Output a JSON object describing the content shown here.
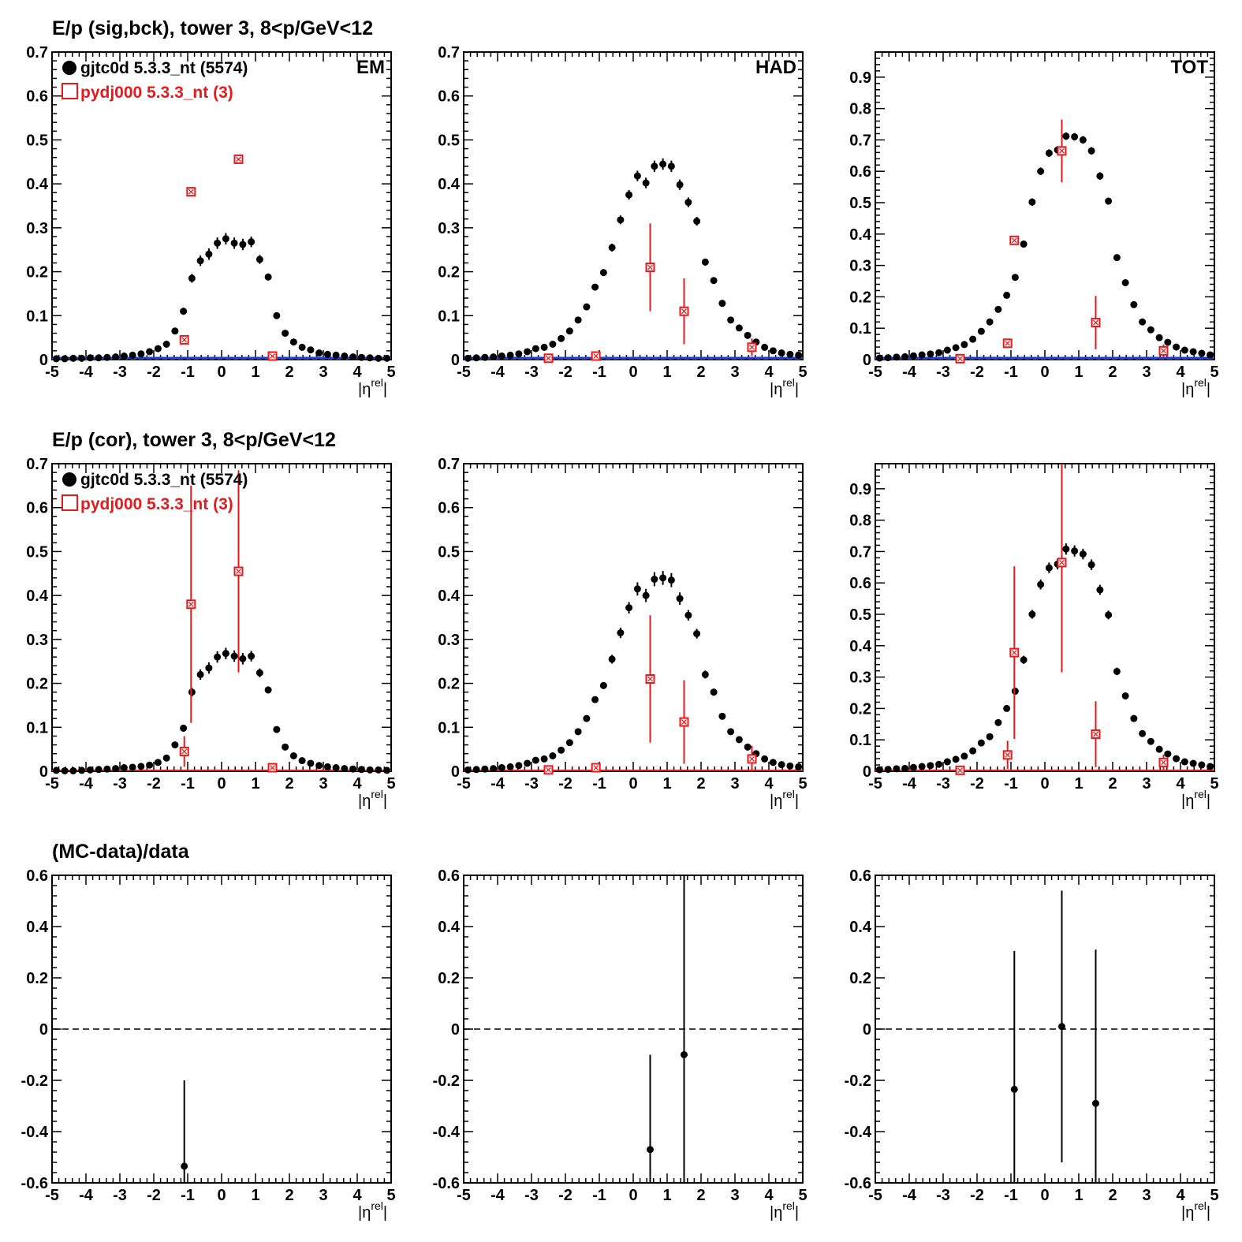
{
  "rows": [
    {
      "title": "E/p (sig,bck), tower 3,  8<p/GeV<12"
    },
    {
      "title": "E/p (cor), tower 3,  8<p/GeV<12"
    },
    {
      "title": "(MC-data)/data"
    }
  ],
  "legend": {
    "data_label": "gjtc0d 5.3.3_nt (5574)",
    "mc_label": "pydj000 5.3.3_nt (3)"
  },
  "colors": {
    "data": "#000000",
    "mc": "#e41a1c",
    "bck": "#1f3fd0",
    "zero_line": "#2a8f2a"
  },
  "chart_data": [
    {
      "id": "em-sigbck",
      "type": "scatter",
      "corner_label": "EM",
      "xlabel": "|η^rel|",
      "xlim": [
        -5,
        5
      ],
      "ylim": [
        0,
        0.7
      ],
      "yticks": [
        0,
        0.1,
        0.2,
        0.3,
        0.4,
        0.5,
        0.6,
        0.7
      ],
      "show_legend": true,
      "show_bck": true,
      "data": {
        "x": [
          -4.875,
          -4.625,
          -4.375,
          -4.125,
          -3.875,
          -3.625,
          -3.375,
          -3.125,
          -2.875,
          -2.625,
          -2.375,
          -2.125,
          -1.875,
          -1.625,
          -1.375,
          -1.125,
          -0.875,
          -0.625,
          -0.375,
          -0.125,
          0.125,
          0.375,
          0.625,
          0.875,
          1.125,
          1.375,
          1.625,
          1.875,
          2.125,
          2.375,
          2.625,
          2.875,
          3.125,
          3.375,
          3.625,
          3.875,
          4.125,
          4.375,
          4.625,
          4.875
        ],
        "y": [
          0.002,
          0.002,
          0.003,
          0.003,
          0.004,
          0.004,
          0.005,
          0.006,
          0.008,
          0.01,
          0.013,
          0.018,
          0.025,
          0.035,
          0.065,
          0.11,
          0.185,
          0.225,
          0.24,
          0.265,
          0.275,
          0.265,
          0.262,
          0.268,
          0.228,
          0.188,
          0.1,
          0.06,
          0.04,
          0.028,
          0.022,
          0.015,
          0.012,
          0.01,
          0.008,
          0.006,
          0.005,
          0.004,
          0.003,
          0.003
        ],
        "err": [
          0.001,
          0.001,
          0.001,
          0.001,
          0.001,
          0.001,
          0.001,
          0.001,
          0.002,
          0.002,
          0.002,
          0.003,
          0.003,
          0.004,
          0.006,
          0.008,
          0.01,
          0.012,
          0.013,
          0.013,
          0.013,
          0.013,
          0.013,
          0.012,
          0.01,
          0.008,
          0.005,
          0.004,
          0.003,
          0.003,
          0.002,
          0.002,
          0.002,
          0.002,
          0.001,
          0.001,
          0.001,
          0.001,
          0.001,
          0.001
        ]
      },
      "mc": {
        "x": [
          -1.1,
          -0.9,
          0.5,
          1.5
        ],
        "y": [
          0.045,
          0.382,
          0.456,
          0.008
        ],
        "err": [
          0.0,
          0.0,
          0.0,
          0.0
        ]
      }
    },
    {
      "id": "had-sigbck",
      "type": "scatter",
      "corner_label": "HAD",
      "xlabel": "|η^rel|",
      "xlim": [
        -5,
        5
      ],
      "ylim": [
        0,
        0.7
      ],
      "yticks": [
        0,
        0.1,
        0.2,
        0.3,
        0.4,
        0.5,
        0.6,
        0.7
      ],
      "show_legend": false,
      "show_bck": true,
      "data": {
        "x": [
          -4.875,
          -4.625,
          -4.375,
          -4.125,
          -3.875,
          -3.625,
          -3.375,
          -3.125,
          -2.875,
          -2.625,
          -2.375,
          -2.125,
          -1.875,
          -1.625,
          -1.375,
          -1.125,
          -0.875,
          -0.625,
          -0.375,
          -0.125,
          0.125,
          0.375,
          0.625,
          0.875,
          1.125,
          1.375,
          1.625,
          1.875,
          2.125,
          2.375,
          2.625,
          2.875,
          3.125,
          3.375,
          3.625,
          3.875,
          4.125,
          4.375,
          4.625,
          4.875
        ],
        "y": [
          0.003,
          0.004,
          0.005,
          0.006,
          0.008,
          0.01,
          0.013,
          0.018,
          0.025,
          0.028,
          0.035,
          0.048,
          0.065,
          0.09,
          0.12,
          0.165,
          0.198,
          0.255,
          0.318,
          0.375,
          0.418,
          0.402,
          0.44,
          0.445,
          0.44,
          0.398,
          0.358,
          0.315,
          0.222,
          0.18,
          0.128,
          0.09,
          0.072,
          0.055,
          0.04,
          0.028,
          0.02,
          0.015,
          0.012,
          0.01
        ],
        "err": [
          0.001,
          0.001,
          0.001,
          0.001,
          0.001,
          0.002,
          0.002,
          0.002,
          0.003,
          0.003,
          0.003,
          0.004,
          0.004,
          0.005,
          0.006,
          0.007,
          0.008,
          0.009,
          0.01,
          0.011,
          0.012,
          0.012,
          0.013,
          0.013,
          0.013,
          0.012,
          0.011,
          0.01,
          0.008,
          0.007,
          0.006,
          0.005,
          0.004,
          0.004,
          0.003,
          0.003,
          0.002,
          0.002,
          0.002,
          0.002
        ]
      },
      "mc": {
        "x": [
          -2.5,
          -1.1,
          0.5,
          1.5,
          3.5
        ],
        "y": [
          0.003,
          0.008,
          0.21,
          0.11,
          0.028
        ],
        "err": [
          0.0,
          0.0,
          0.1,
          0.075,
          0.02
        ]
      }
    },
    {
      "id": "tot-sigbck",
      "type": "scatter",
      "corner_label": "TOT",
      "xlabel": "|η^rel|",
      "xlim": [
        -5,
        5
      ],
      "ylim": [
        0,
        0.98
      ],
      "yticks": [
        0,
        0.1,
        0.2,
        0.3,
        0.4,
        0.5,
        0.6,
        0.7,
        0.8,
        0.9
      ],
      "show_legend": false,
      "show_bck": true,
      "data": {
        "x": [
          -4.875,
          -4.625,
          -4.375,
          -4.125,
          -3.875,
          -3.625,
          -3.375,
          -3.125,
          -2.875,
          -2.625,
          -2.375,
          -2.125,
          -1.875,
          -1.625,
          -1.375,
          -1.125,
          -0.875,
          -0.625,
          -0.375,
          -0.125,
          0.125,
          0.375,
          0.625,
          0.875,
          1.125,
          1.375,
          1.625,
          1.875,
          2.125,
          2.375,
          2.625,
          2.875,
          3.125,
          3.375,
          3.625,
          3.875,
          4.125,
          4.375,
          4.625,
          4.875
        ],
        "y": [
          0.005,
          0.006,
          0.008,
          0.009,
          0.012,
          0.015,
          0.018,
          0.022,
          0.03,
          0.038,
          0.048,
          0.065,
          0.09,
          0.12,
          0.16,
          0.205,
          0.262,
          0.368,
          0.502,
          0.6,
          0.658,
          0.668,
          0.712,
          0.71,
          0.7,
          0.665,
          0.585,
          0.505,
          0.325,
          0.245,
          0.175,
          0.12,
          0.095,
          0.07,
          0.055,
          0.04,
          0.03,
          0.025,
          0.02,
          0.015
        ],
        "err": [
          0.001,
          0.001,
          0.001,
          0.001,
          0.002,
          0.002,
          0.002,
          0.003,
          0.003,
          0.004,
          0.004,
          0.005,
          0.006,
          0.007,
          0.008,
          0.009,
          0.01,
          0.011,
          0.012,
          0.012,
          0.012,
          0.012,
          0.012,
          0.012,
          0.012,
          0.012,
          0.012,
          0.011,
          0.01,
          0.009,
          0.008,
          0.007,
          0.006,
          0.005,
          0.004,
          0.004,
          0.003,
          0.003,
          0.003,
          0.002
        ]
      },
      "mc": {
        "x": [
          -2.5,
          -1.1,
          -0.9,
          0.5,
          1.5,
          3.5
        ],
        "y": [
          0.003,
          0.052,
          0.38,
          0.665,
          0.118,
          0.028
        ],
        "err": [
          0.0,
          0.0,
          0.0,
          0.1,
          0.085,
          0.02
        ]
      }
    },
    {
      "id": "em-cor",
      "type": "scatter",
      "xlabel": "|η^rel|",
      "xlim": [
        -5,
        5
      ],
      "ylim": [
        0,
        0.7
      ],
      "yticks": [
        0,
        0.1,
        0.2,
        0.3,
        0.4,
        0.5,
        0.6,
        0.7
      ],
      "show_legend": true,
      "show_bck": false,
      "data": {
        "x": [
          -4.875,
          -4.625,
          -4.375,
          -4.125,
          -3.875,
          -3.625,
          -3.375,
          -3.125,
          -2.875,
          -2.625,
          -2.375,
          -2.125,
          -1.875,
          -1.625,
          -1.375,
          -1.125,
          -0.875,
          -0.625,
          -0.375,
          -0.125,
          0.125,
          0.375,
          0.625,
          0.875,
          1.125,
          1.375,
          1.625,
          1.875,
          2.125,
          2.375,
          2.625,
          2.875,
          3.125,
          3.375,
          3.625,
          3.875,
          4.125,
          4.375,
          4.625,
          4.875
        ],
        "y": [
          0.002,
          0.001,
          0.001,
          0.002,
          0.003,
          0.004,
          0.005,
          0.006,
          0.008,
          0.009,
          0.011,
          0.014,
          0.02,
          0.03,
          0.06,
          0.098,
          0.18,
          0.22,
          0.235,
          0.26,
          0.268,
          0.262,
          0.256,
          0.262,
          0.224,
          0.185,
          0.095,
          0.055,
          0.035,
          0.024,
          0.018,
          0.013,
          0.01,
          0.008,
          0.006,
          0.005,
          0.004,
          0.003,
          0.003,
          0.002
        ],
        "err": [
          0.001,
          0.001,
          0.001,
          0.001,
          0.001,
          0.001,
          0.001,
          0.001,
          0.002,
          0.002,
          0.002,
          0.003,
          0.003,
          0.004,
          0.006,
          0.008,
          0.01,
          0.012,
          0.013,
          0.013,
          0.013,
          0.013,
          0.013,
          0.012,
          0.01,
          0.008,
          0.005,
          0.004,
          0.003,
          0.003,
          0.002,
          0.002,
          0.002,
          0.002,
          0.001,
          0.001,
          0.001,
          0.001,
          0.001,
          0.001
        ]
      },
      "mc": {
        "x": [
          -1.1,
          -0.9,
          0.5,
          1.5
        ],
        "y": [
          0.045,
          0.38,
          0.455,
          0.008
        ],
        "err": [
          0.035,
          0.27,
          0.23,
          0.0
        ]
      }
    },
    {
      "id": "had-cor",
      "type": "scatter",
      "xlabel": "|η^rel|",
      "xlim": [
        -5,
        5
      ],
      "ylim": [
        0,
        0.7
      ],
      "yticks": [
        0,
        0.1,
        0.2,
        0.3,
        0.4,
        0.5,
        0.6,
        0.7
      ],
      "show_legend": false,
      "show_bck": false,
      "data": {
        "x": [
          -4.875,
          -4.625,
          -4.375,
          -4.125,
          -3.875,
          -3.625,
          -3.375,
          -3.125,
          -2.875,
          -2.625,
          -2.375,
          -2.125,
          -1.875,
          -1.625,
          -1.375,
          -1.125,
          -0.875,
          -0.625,
          -0.375,
          -0.125,
          0.125,
          0.375,
          0.625,
          0.875,
          1.125,
          1.375,
          1.625,
          1.875,
          2.125,
          2.375,
          2.625,
          2.875,
          3.125,
          3.375,
          3.625,
          3.875,
          4.125,
          4.375,
          4.625,
          4.875
        ],
        "y": [
          0.003,
          0.004,
          0.005,
          0.006,
          0.008,
          0.01,
          0.013,
          0.018,
          0.025,
          0.028,
          0.035,
          0.048,
          0.065,
          0.09,
          0.12,
          0.163,
          0.195,
          0.255,
          0.315,
          0.372,
          0.415,
          0.4,
          0.437,
          0.44,
          0.435,
          0.393,
          0.355,
          0.313,
          0.22,
          0.18,
          0.125,
          0.09,
          0.072,
          0.055,
          0.04,
          0.028,
          0.02,
          0.015,
          0.012,
          0.01
        ],
        "err": [
          0.001,
          0.001,
          0.001,
          0.001,
          0.001,
          0.002,
          0.002,
          0.002,
          0.003,
          0.003,
          0.003,
          0.004,
          0.004,
          0.005,
          0.006,
          0.007,
          0.008,
          0.01,
          0.012,
          0.013,
          0.015,
          0.015,
          0.016,
          0.016,
          0.016,
          0.014,
          0.012,
          0.011,
          0.009,
          0.008,
          0.006,
          0.005,
          0.004,
          0.004,
          0.003,
          0.003,
          0.002,
          0.002,
          0.002,
          0.002
        ]
      },
      "mc": {
        "x": [
          -2.5,
          -1.1,
          0.5,
          1.5,
          3.5
        ],
        "y": [
          0.003,
          0.008,
          0.21,
          0.112,
          0.028
        ],
        "err": [
          0.0,
          0.0,
          0.145,
          0.095,
          0.03
        ]
      }
    },
    {
      "id": "tot-cor",
      "type": "scatter",
      "xlabel": "|η^rel|",
      "xlim": [
        -5,
        5
      ],
      "ylim": [
        0,
        0.98
      ],
      "yticks": [
        0,
        0.1,
        0.2,
        0.3,
        0.4,
        0.5,
        0.6,
        0.7,
        0.8,
        0.9
      ],
      "show_legend": false,
      "show_bck": false,
      "data": {
        "x": [
          -4.875,
          -4.625,
          -4.375,
          -4.125,
          -3.875,
          -3.625,
          -3.375,
          -3.125,
          -2.875,
          -2.625,
          -2.375,
          -2.125,
          -1.875,
          -1.625,
          -1.375,
          -1.125,
          -0.875,
          -0.625,
          -0.375,
          -0.125,
          0.125,
          0.375,
          0.625,
          0.875,
          1.125,
          1.375,
          1.625,
          1.875,
          2.125,
          2.375,
          2.625,
          2.875,
          3.125,
          3.375,
          3.625,
          3.875,
          4.125,
          4.375,
          4.625,
          4.875
        ],
        "y": [
          0.005,
          0.006,
          0.008,
          0.009,
          0.012,
          0.015,
          0.018,
          0.022,
          0.03,
          0.038,
          0.048,
          0.065,
          0.09,
          0.11,
          0.155,
          0.2,
          0.255,
          0.355,
          0.5,
          0.595,
          0.648,
          0.66,
          0.708,
          0.702,
          0.692,
          0.658,
          0.578,
          0.498,
          0.318,
          0.24,
          0.168,
          0.12,
          0.095,
          0.07,
          0.055,
          0.04,
          0.03,
          0.025,
          0.02,
          0.015
        ],
        "err": [
          0.001,
          0.001,
          0.001,
          0.001,
          0.002,
          0.002,
          0.002,
          0.003,
          0.003,
          0.004,
          0.004,
          0.005,
          0.006,
          0.007,
          0.008,
          0.009,
          0.011,
          0.013,
          0.014,
          0.016,
          0.017,
          0.017,
          0.018,
          0.018,
          0.017,
          0.017,
          0.016,
          0.014,
          0.012,
          0.01,
          0.008,
          0.007,
          0.006,
          0.005,
          0.004,
          0.004,
          0.003,
          0.003,
          0.003,
          0.002
        ]
      },
      "mc": {
        "x": [
          -2.5,
          -1.1,
          -0.9,
          0.5,
          1.5,
          3.5
        ],
        "y": [
          0.003,
          0.052,
          0.378,
          0.665,
          0.118,
          0.028
        ],
        "err": [
          0.0,
          0.045,
          0.275,
          0.35,
          0.105,
          0.025
        ]
      }
    },
    {
      "id": "em-ratio",
      "type": "scatter",
      "xlabel": "|η^rel|",
      "xlim": [
        -5,
        5
      ],
      "ylim": [
        -0.6,
        0.6
      ],
      "yticks": [
        -0.6,
        -0.4,
        -0.2,
        0,
        0.2,
        0.4,
        0.6
      ],
      "ytick_labels": [
        "-0.6",
        "-0.4",
        "-0.2",
        "0",
        "0.2",
        "0.4",
        "0.6"
      ],
      "show_legend": false,
      "dashed_zero": true,
      "ratio": {
        "x": [
          -1.1
        ],
        "y": [
          -0.535
        ],
        "err": [
          0.335
        ]
      }
    },
    {
      "id": "had-ratio",
      "type": "scatter",
      "xlabel": "|η^rel|",
      "xlim": [
        -5,
        5
      ],
      "ylim": [
        -0.6,
        0.6
      ],
      "yticks": [
        -0.6,
        -0.4,
        -0.2,
        0,
        0.2,
        0.4,
        0.6
      ],
      "ytick_labels": [
        "-0.6",
        "-0.4",
        "-0.2",
        "0",
        "0.2",
        "0.4",
        "0.6"
      ],
      "show_legend": false,
      "dashed_zero": true,
      "ratio": {
        "x": [
          0.5,
          1.5
        ],
        "y": [
          -0.47,
          -0.1
        ],
        "err": [
          0.37,
          0.72
        ]
      }
    },
    {
      "id": "tot-ratio",
      "type": "scatter",
      "xlabel": "|η^rel|",
      "xlim": [
        -5,
        5
      ],
      "ylim": [
        -0.6,
        0.6
      ],
      "yticks": [
        -0.6,
        -0.4,
        -0.2,
        0,
        0.2,
        0.4,
        0.6
      ],
      "ytick_labels": [
        "-0.6",
        "-0.4",
        "-0.2",
        "0",
        "0.2",
        "0.4",
        "0.6"
      ],
      "show_legend": false,
      "dashed_zero": true,
      "ratio": {
        "x": [
          -0.9,
          0.5,
          1.5
        ],
        "y": [
          -0.235,
          0.01,
          -0.29
        ],
        "err": [
          0.54,
          0.53,
          0.6
        ]
      }
    }
  ]
}
